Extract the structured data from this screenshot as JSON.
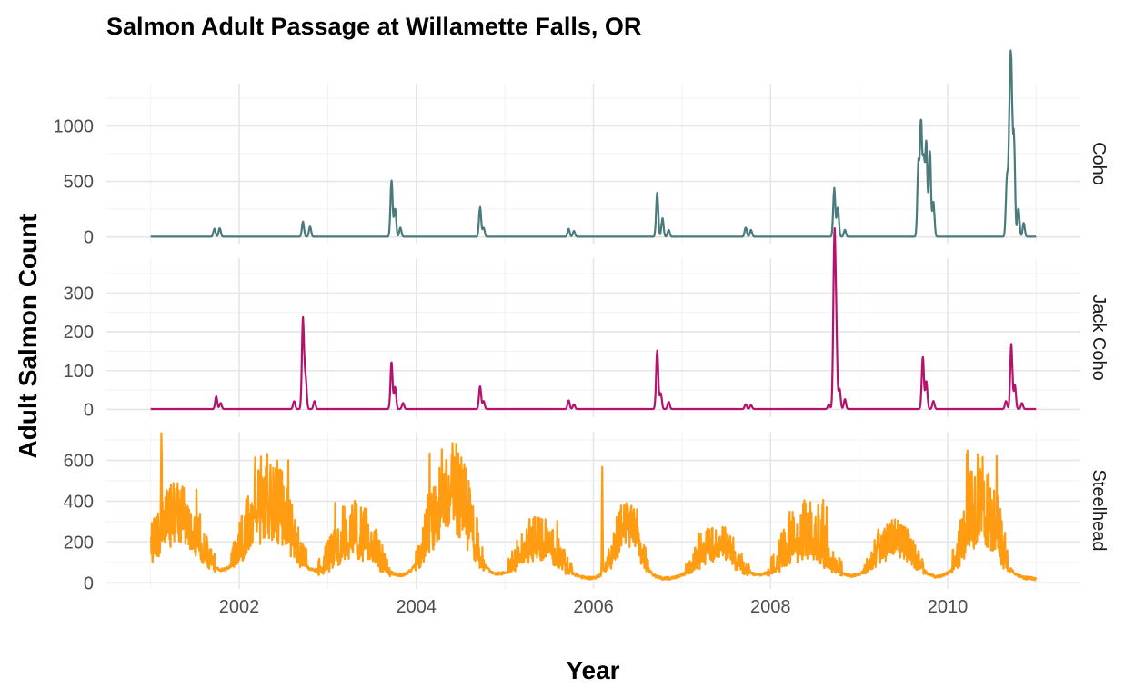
{
  "chart_data": {
    "type": "line",
    "title": "Salmon Adult Passage at Willamette Falls, OR",
    "xlabel": "Year",
    "ylabel": "Adult Salmon Count",
    "xlim": [
      2000.5,
      2011.5
    ],
    "x_ticks": [
      2002,
      2004,
      2006,
      2008,
      2010
    ],
    "grid": true,
    "facet_labels_position": "right",
    "panels": [
      {
        "name": "Coho",
        "color": "#4a7a7c",
        "ylim": [
          -60,
          1380
        ],
        "y_ticks": [
          0,
          500,
          1000
        ],
        "baseline": 2,
        "peaks": [
          {
            "x": 2001.72,
            "y": 70
          },
          {
            "x": 2001.78,
            "y": 75
          },
          {
            "x": 2002.72,
            "y": 130
          },
          {
            "x": 2002.8,
            "y": 90
          },
          {
            "x": 2003.72,
            "y": 500
          },
          {
            "x": 2003.76,
            "y": 250
          },
          {
            "x": 2003.82,
            "y": 80
          },
          {
            "x": 2004.72,
            "y": 260
          },
          {
            "x": 2004.76,
            "y": 80
          },
          {
            "x": 2005.72,
            "y": 70
          },
          {
            "x": 2005.78,
            "y": 50
          },
          {
            "x": 2006.72,
            "y": 385
          },
          {
            "x": 2006.78,
            "y": 160
          },
          {
            "x": 2006.85,
            "y": 60
          },
          {
            "x": 2007.72,
            "y": 80
          },
          {
            "x": 2007.78,
            "y": 60
          },
          {
            "x": 2008.72,
            "y": 420
          },
          {
            "x": 2008.76,
            "y": 260
          },
          {
            "x": 2008.84,
            "y": 60
          },
          {
            "x": 2009.67,
            "y": 620
          },
          {
            "x": 2009.7,
            "y": 980
          },
          {
            "x": 2009.73,
            "y": 650
          },
          {
            "x": 2009.76,
            "y": 800
          },
          {
            "x": 2009.8,
            "y": 750
          },
          {
            "x": 2009.84,
            "y": 300
          },
          {
            "x": 2010.67,
            "y": 500
          },
          {
            "x": 2010.7,
            "y": 900
          },
          {
            "x": 2010.72,
            "y": 1300
          },
          {
            "x": 2010.75,
            "y": 850
          },
          {
            "x": 2010.8,
            "y": 250
          },
          {
            "x": 2010.86,
            "y": 120
          }
        ]
      },
      {
        "name": "Jack Coho",
        "color": "#b5126e",
        "ylim": [
          -20,
          390
        ],
        "y_ticks": [
          0,
          100,
          200,
          300
        ],
        "baseline": 1,
        "peaks": [
          {
            "x": 2001.74,
            "y": 32
          },
          {
            "x": 2001.79,
            "y": 15
          },
          {
            "x": 2002.62,
            "y": 20
          },
          {
            "x": 2002.72,
            "y": 225
          },
          {
            "x": 2002.75,
            "y": 75
          },
          {
            "x": 2002.85,
            "y": 20
          },
          {
            "x": 2003.72,
            "y": 118
          },
          {
            "x": 2003.76,
            "y": 55
          },
          {
            "x": 2003.85,
            "y": 15
          },
          {
            "x": 2004.72,
            "y": 57
          },
          {
            "x": 2004.76,
            "y": 20
          },
          {
            "x": 2005.72,
            "y": 22
          },
          {
            "x": 2005.78,
            "y": 12
          },
          {
            "x": 2006.72,
            "y": 148
          },
          {
            "x": 2006.76,
            "y": 40
          },
          {
            "x": 2006.85,
            "y": 18
          },
          {
            "x": 2007.72,
            "y": 12
          },
          {
            "x": 2007.78,
            "y": 10
          },
          {
            "x": 2008.66,
            "y": 12
          },
          {
            "x": 2008.72,
            "y": 380
          },
          {
            "x": 2008.74,
            "y": 210
          },
          {
            "x": 2008.78,
            "y": 50
          },
          {
            "x": 2008.84,
            "y": 25
          },
          {
            "x": 2009.72,
            "y": 132
          },
          {
            "x": 2009.76,
            "y": 70
          },
          {
            "x": 2009.84,
            "y": 20
          },
          {
            "x": 2010.66,
            "y": 20
          },
          {
            "x": 2010.72,
            "y": 165
          },
          {
            "x": 2010.76,
            "y": 60
          },
          {
            "x": 2010.84,
            "y": 15
          }
        ]
      },
      {
        "name": "Steelhead",
        "color": "#ff9c11",
        "ylim": [
          -30,
          740
        ],
        "y_ticks": [
          0,
          200,
          400,
          600
        ],
        "baseline": 12,
        "seasons": [
          {
            "center": 2001.3,
            "width": 0.22,
            "peak": 330,
            "max": 500
          },
          {
            "center": 2002.33,
            "width": 0.22,
            "peak": 360,
            "max": 650
          },
          {
            "center": 2003.3,
            "width": 0.21,
            "peak": 200,
            "max": 420
          },
          {
            "center": 2004.38,
            "width": 0.2,
            "peak": 460,
            "max": 710
          },
          {
            "center": 2005.38,
            "width": 0.2,
            "peak": 180,
            "max": 330
          },
          {
            "center": 2006.38,
            "width": 0.13,
            "peak": 270,
            "max": 390
          },
          {
            "center": 2007.4,
            "width": 0.19,
            "peak": 170,
            "max": 280
          },
          {
            "center": 2008.38,
            "width": 0.22,
            "peak": 180,
            "max": 420
          },
          {
            "center": 2009.4,
            "width": 0.18,
            "peak": 220,
            "max": 300
          },
          {
            "center": 2010.38,
            "width": 0.17,
            "peak": 330,
            "max": 650
          }
        ],
        "spikes": [
          {
            "x": 2006.1,
            "y": 520
          },
          {
            "x": 2001.12,
            "y": 440
          },
          {
            "x": 2002.16,
            "y": 220
          }
        ]
      }
    ]
  }
}
